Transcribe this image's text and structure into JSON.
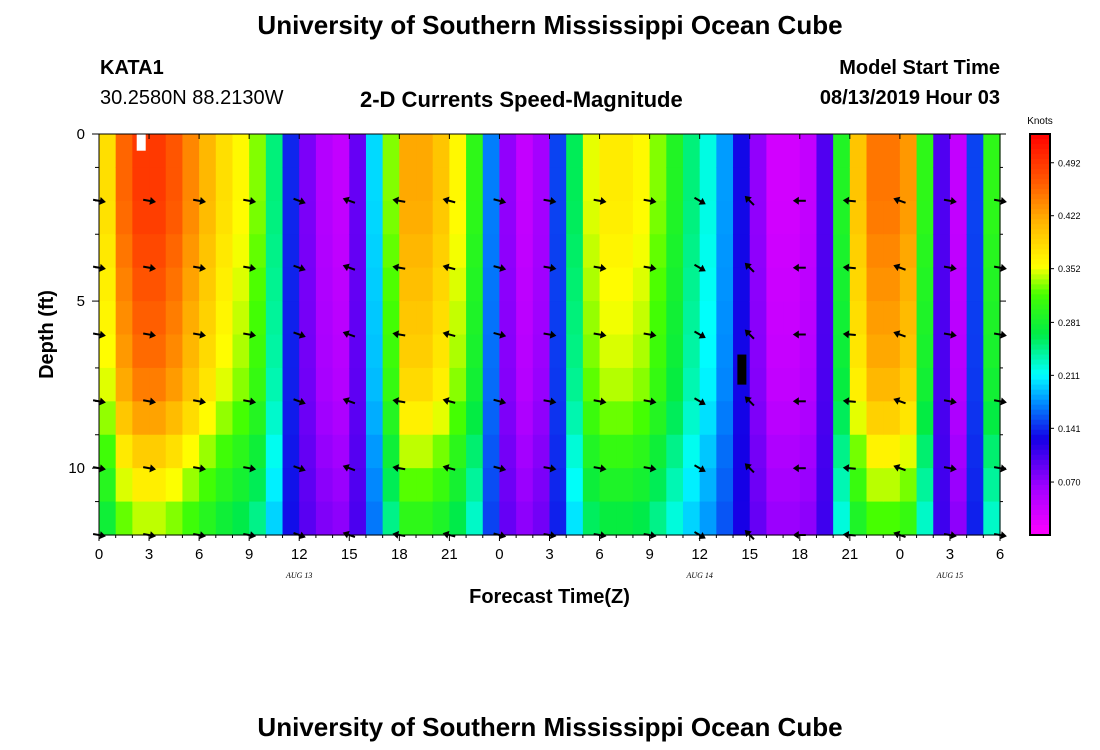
{
  "header": {
    "title": "University of Southern Mississippi Ocean Cube",
    "station": "KATA1",
    "coords": "30.2580N 88.2130W",
    "subtitle": "2-D Currents Speed-Magnitude",
    "model_start_label": "Model Start Time",
    "model_start_value": "08/13/2019 Hour 03"
  },
  "footer": {
    "title": "University of Southern Mississippi Ocean Cube"
  },
  "colorbar": {
    "unit": "Knots",
    "ticks": [
      "0.492",
      "0.422",
      "0.352",
      "0.281",
      "0.211",
      "0.141",
      "0.070"
    ]
  },
  "chart_data": {
    "type": "heatmap",
    "title": "2-D Currents Speed-Magnitude",
    "xlabel": "Forecast Time(Z)",
    "ylabel": "Depth (ft)",
    "x_hours_from_start": [
      0,
      54
    ],
    "x_tick_labels": [
      "0",
      "3",
      "6",
      "9",
      "12",
      "15",
      "18",
      "21",
      "0",
      "3",
      "6",
      "9",
      "12",
      "15",
      "18",
      "21",
      "0",
      "3",
      "6"
    ],
    "date_labels": [
      {
        "label": "AUG 13",
        "hour": 12
      },
      {
        "label": "AUG 14",
        "hour": 36
      },
      {
        "label": "AUG 15",
        "hour": 51
      }
    ],
    "ylim": [
      0,
      12
    ],
    "y_tick_labels": [
      "0",
      "5",
      "10"
    ],
    "color_range_knots": [
      0.0,
      0.53
    ],
    "speed_knots_surface_by_hour": [
      0.38,
      0.46,
      0.49,
      0.49,
      0.47,
      0.44,
      0.41,
      0.38,
      0.36,
      0.33,
      0.25,
      0.14,
      0.08,
      0.05,
      0.04,
      0.09,
      0.2,
      0.33,
      0.42,
      0.42,
      0.4,
      0.36,
      0.3,
      0.17,
      0.07,
      0.04,
      0.06,
      0.15,
      0.26,
      0.35,
      0.37,
      0.37,
      0.36,
      0.33,
      0.29,
      0.25,
      0.22,
      0.18,
      0.13,
      0.07,
      0.03,
      0.03,
      0.04,
      0.1,
      0.29,
      0.4,
      0.45,
      0.45,
      0.43,
      0.3,
      0.1,
      0.04,
      0.15,
      0.3,
      0.33
    ],
    "depth_attenuation_by_ft": [
      1.0,
      1.0,
      0.99,
      0.97,
      0.95,
      0.93,
      0.91,
      0.88,
      0.82,
      0.74,
      0.67,
      0.6,
      0.55
    ],
    "arrows": {
      "hours": [
        0,
        3,
        6,
        9,
        12,
        15,
        18,
        21,
        24,
        27,
        30,
        33,
        36,
        39,
        42,
        45,
        48,
        51,
        54
      ],
      "depths_ft": [
        2,
        4,
        6,
        8,
        10,
        12
      ],
      "direction_deg_by_hour": [
        10,
        10,
        10,
        10,
        20,
        200,
        190,
        195,
        15,
        10,
        10,
        10,
        30,
        225,
        180,
        185,
        200,
        10,
        10
      ]
    },
    "markers": [
      {
        "hour": 2.5,
        "depth_ft_start": 0.0,
        "depth_ft_end": 0.5,
        "color": "#ffffff"
      },
      {
        "hour": 38.5,
        "depth_ft_start": 6.6,
        "depth_ft_end": 7.5,
        "color": "#000000"
      }
    ]
  }
}
